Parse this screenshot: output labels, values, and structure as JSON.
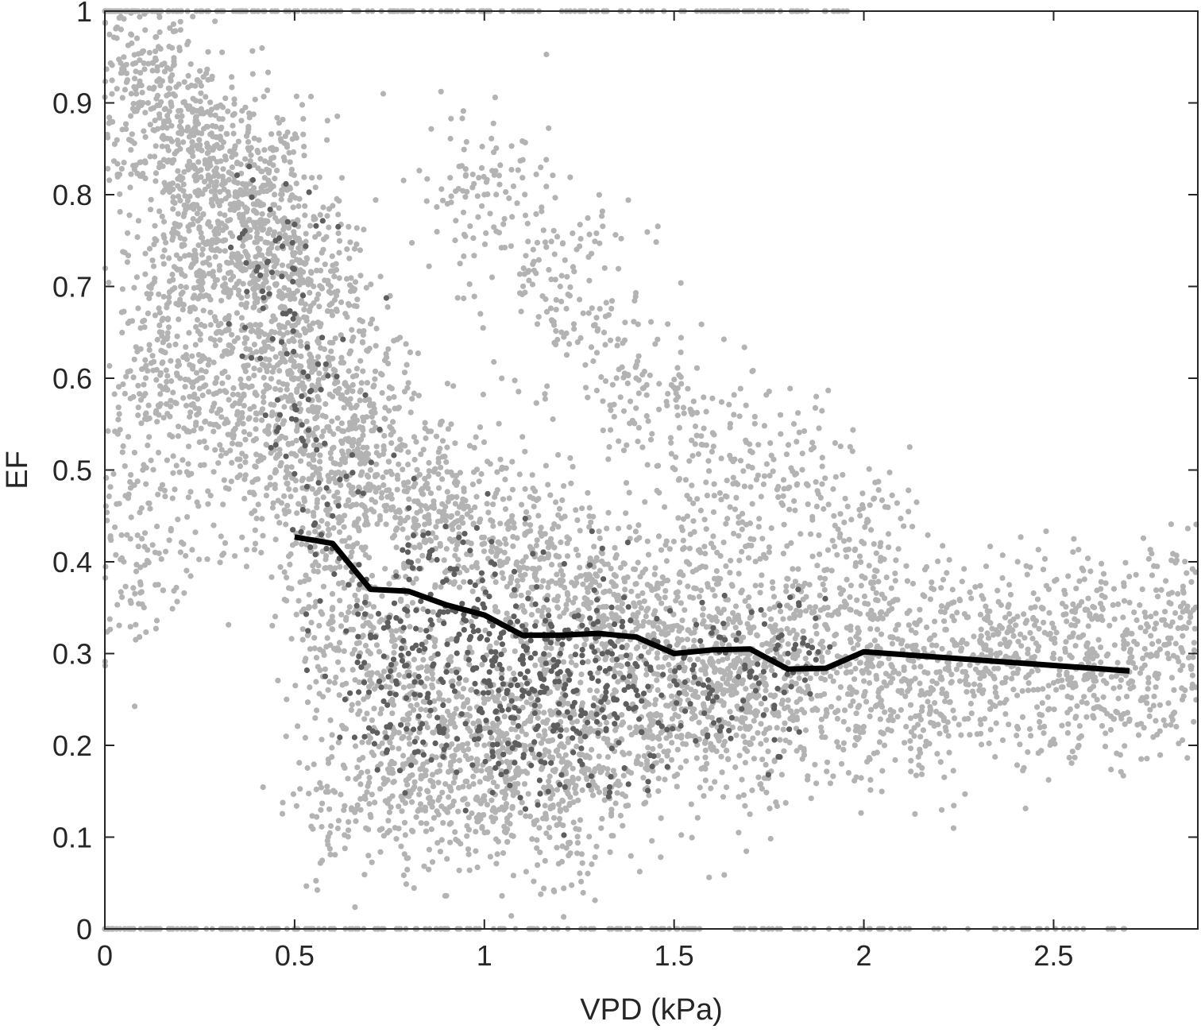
{
  "chart_data": {
    "type": "scatter",
    "title": "",
    "xlabel": "VPD (kPa)",
    "ylabel": "EF",
    "xlim": [
      0,
      2.88
    ],
    "ylim": [
      0,
      1
    ],
    "xticks": [
      0,
      0.5,
      1,
      1.5,
      2,
      2.5
    ],
    "xtick_labels": [
      "0",
      "0.5",
      "1",
      "1.5",
      "2",
      "2.5"
    ],
    "yticks": [
      0,
      0.1,
      0.2,
      0.3,
      0.4,
      0.5,
      0.6,
      0.7,
      0.8,
      0.9,
      1
    ],
    "ytick_labels": [
      "0",
      "0.1",
      "0.2",
      "0.3",
      "0.4",
      "0.5",
      "0.6",
      "0.7",
      "0.8",
      "0.9",
      "1"
    ],
    "grid": false,
    "box": true,
    "colors": {
      "light_points": "#b3b3b3",
      "dark_points": "#5e5e5e",
      "line": "#000000",
      "axis": "#262626"
    },
    "scatter_groups": [
      {
        "color": "#b3b3b3",
        "description_points": [
          [
            0.05,
            0.95
          ],
          [
            0.1,
            0.9
          ],
          [
            0.2,
            0.88
          ],
          [
            0.25,
            0.85
          ],
          [
            0.3,
            0.82
          ],
          [
            0.35,
            0.8
          ],
          [
            0.4,
            0.78
          ],
          [
            0.45,
            0.75
          ],
          [
            0.5,
            0.72
          ],
          [
            0.55,
            0.7
          ],
          [
            0.3,
            0.75
          ],
          [
            0.2,
            0.7
          ],
          [
            0.15,
            0.65
          ],
          [
            0.4,
            0.65
          ],
          [
            0.5,
            0.6
          ],
          [
            0.6,
            0.58
          ],
          [
            0.65,
            0.55
          ],
          [
            0.7,
            0.5
          ],
          [
            0.8,
            0.48
          ],
          [
            0.9,
            0.45
          ],
          [
            1.0,
            0.42
          ],
          [
            1.1,
            0.4
          ],
          [
            1.2,
            0.38
          ],
          [
            1.3,
            0.36
          ],
          [
            1.4,
            0.34
          ],
          [
            1.5,
            0.33
          ],
          [
            1.6,
            0.32
          ],
          [
            1.7,
            0.3
          ],
          [
            1.8,
            0.29
          ],
          [
            1.9,
            0.28
          ],
          [
            2.0,
            0.27
          ],
          [
            2.1,
            0.27
          ],
          [
            2.2,
            0.28
          ],
          [
            2.3,
            0.29
          ],
          [
            2.4,
            0.3
          ],
          [
            2.5,
            0.3
          ],
          [
            2.6,
            0.3
          ],
          [
            2.7,
            0.28
          ],
          [
            0.7,
            0.3
          ],
          [
            0.8,
            0.25
          ],
          [
            0.9,
            0.22
          ],
          [
            1.0,
            0.2
          ],
          [
            1.1,
            0.2
          ],
          [
            1.2,
            0.22
          ],
          [
            1.3,
            0.21
          ],
          [
            1.4,
            0.22
          ],
          [
            1.5,
            0.24
          ],
          [
            1.6,
            0.23
          ],
          [
            1.7,
            0.22
          ],
          [
            0.6,
            0.35
          ],
          [
            0.55,
            0.45
          ],
          [
            0.45,
            0.5
          ],
          [
            0.35,
            0.55
          ],
          [
            0.25,
            0.6
          ],
          [
            0.1,
            0.5
          ],
          [
            0.05,
            0.4
          ],
          [
            1.0,
            0.8
          ],
          [
            1.2,
            0.7
          ],
          [
            1.4,
            0.6
          ],
          [
            1.6,
            0.52
          ],
          [
            1.8,
            0.48
          ],
          [
            2.0,
            0.42
          ],
          [
            0.8,
            0.15
          ],
          [
            1.0,
            0.14
          ],
          [
            1.2,
            0.13
          ],
          [
            0.65,
            0.13
          ],
          [
            2.8,
            0.3
          ],
          [
            2.9,
            0.35
          ]
        ]
      },
      {
        "color": "#5e5e5e",
        "description_points": [
          [
            0.7,
            0.32
          ],
          [
            0.8,
            0.3
          ],
          [
            0.9,
            0.28
          ],
          [
            1.0,
            0.27
          ],
          [
            1.1,
            0.26
          ],
          [
            1.2,
            0.28
          ],
          [
            1.3,
            0.27
          ],
          [
            1.4,
            0.26
          ],
          [
            1.5,
            0.27
          ],
          [
            1.6,
            0.26
          ],
          [
            1.7,
            0.28
          ],
          [
            1.8,
            0.3
          ],
          [
            0.8,
            0.4
          ],
          [
            0.9,
            0.38
          ],
          [
            1.0,
            0.35
          ],
          [
            1.1,
            0.33
          ],
          [
            1.2,
            0.3
          ],
          [
            1.3,
            0.32
          ],
          [
            0.6,
            0.45
          ],
          [
            0.75,
            0.22
          ],
          [
            0.9,
            0.2
          ],
          [
            1.05,
            0.19
          ],
          [
            1.2,
            0.21
          ],
          [
            1.35,
            0.23
          ],
          [
            0.5,
            0.57
          ],
          [
            0.5,
            0.67
          ],
          [
            0.45,
            0.75
          ]
        ]
      }
    ],
    "series": [
      {
        "type": "line",
        "color": "#000000",
        "x": [
          0.5,
          0.6,
          0.7,
          0.8,
          0.9,
          1.0,
          1.1,
          1.2,
          1.3,
          1.4,
          1.5,
          1.6,
          1.7,
          1.8,
          1.9,
          2.0,
          2.7
        ],
        "y": [
          0.427,
          0.42,
          0.37,
          0.368,
          0.353,
          0.342,
          0.32,
          0.32,
          0.322,
          0.318,
          0.3,
          0.304,
          0.305,
          0.283,
          0.284,
          0.302,
          0.281
        ]
      }
    ],
    "boundary_point_rows": [
      {
        "y": 1,
        "x_range": [
          0,
          2.0
        ]
      },
      {
        "y": 0,
        "x_range": [
          0,
          2.7
        ]
      }
    ]
  }
}
